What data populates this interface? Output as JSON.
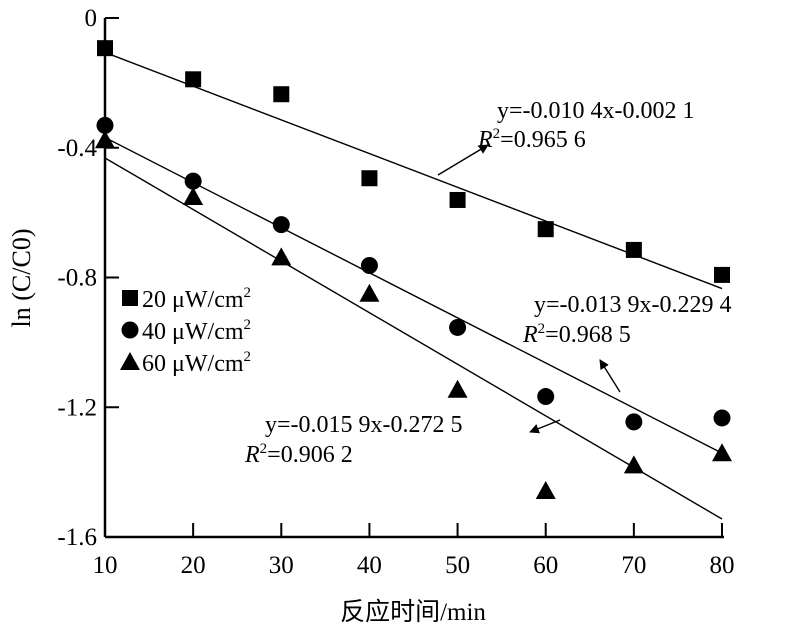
{
  "chart_data": {
    "type": "scatter",
    "xlabel": "反应时间/min",
    "ylabel": "ln (C/C0)",
    "ylabel_parts": {
      "pre": "ln (",
      "c": "C",
      "slash": "/",
      "c0": "C",
      "sub": "0",
      "post": ")"
    },
    "xlim": [
      10,
      80
    ],
    "ylim": [
      -1.6,
      0
    ],
    "xticks": [
      "10",
      "20",
      "30",
      "40",
      "50",
      "60",
      "70",
      "80"
    ],
    "yticks": [
      "0",
      "-0.4",
      "-0.8",
      "-1.2",
      "-1.6"
    ],
    "ytick_values": [
      0,
      -0.4,
      -0.8,
      -1.2,
      -1.6
    ],
    "xtick_values": [
      10,
      20,
      30,
      40,
      50,
      60,
      70,
      80
    ],
    "grid": false,
    "legend_position": "left-middle",
    "x": [
      10,
      20,
      30,
      40,
      50,
      60,
      70,
      80
    ],
    "series": [
      {
        "name": "20 μW/cm2",
        "marker": "square",
        "values": [
          -0.093,
          -0.189,
          -0.235,
          -0.494,
          -0.561,
          -0.651,
          -0.715,
          -0.792
        ],
        "fit": {
          "slope": -0.0104,
          "intercept": -0.0021,
          "equation": "y=-0.010 4x-0.002 1",
          "r2": "0.965 6"
        }
      },
      {
        "name": "40 μW/cm2",
        "marker": "circle",
        "values": [
          -0.331,
          -0.503,
          -0.637,
          -0.763,
          -0.954,
          -1.167,
          -1.245,
          -1.233
        ],
        "fit": {
          "slope": -0.0139,
          "intercept": -0.2294,
          "equation": "y=-0.013 9x-0.229 4",
          "r2": "0.968 5"
        }
      },
      {
        "name": "60 μW/cm2",
        "marker": "triangle",
        "values": [
          -0.377,
          -0.552,
          -0.738,
          -0.85,
          -1.146,
          -1.458,
          -1.379,
          -1.342
        ],
        "fit": {
          "slope": -0.0159,
          "intercept": -0.2725,
          "equation": "y=-0.015 9x-0.272 5",
          "r2": "0.906 2"
        }
      }
    ],
    "legend": [
      {
        "value": "20 μW/cm",
        "sup": "2"
      },
      {
        "value": "40 μW/cm",
        "sup": "2"
      },
      {
        "value": "60 μW/cm",
        "sup": "2"
      }
    ]
  }
}
